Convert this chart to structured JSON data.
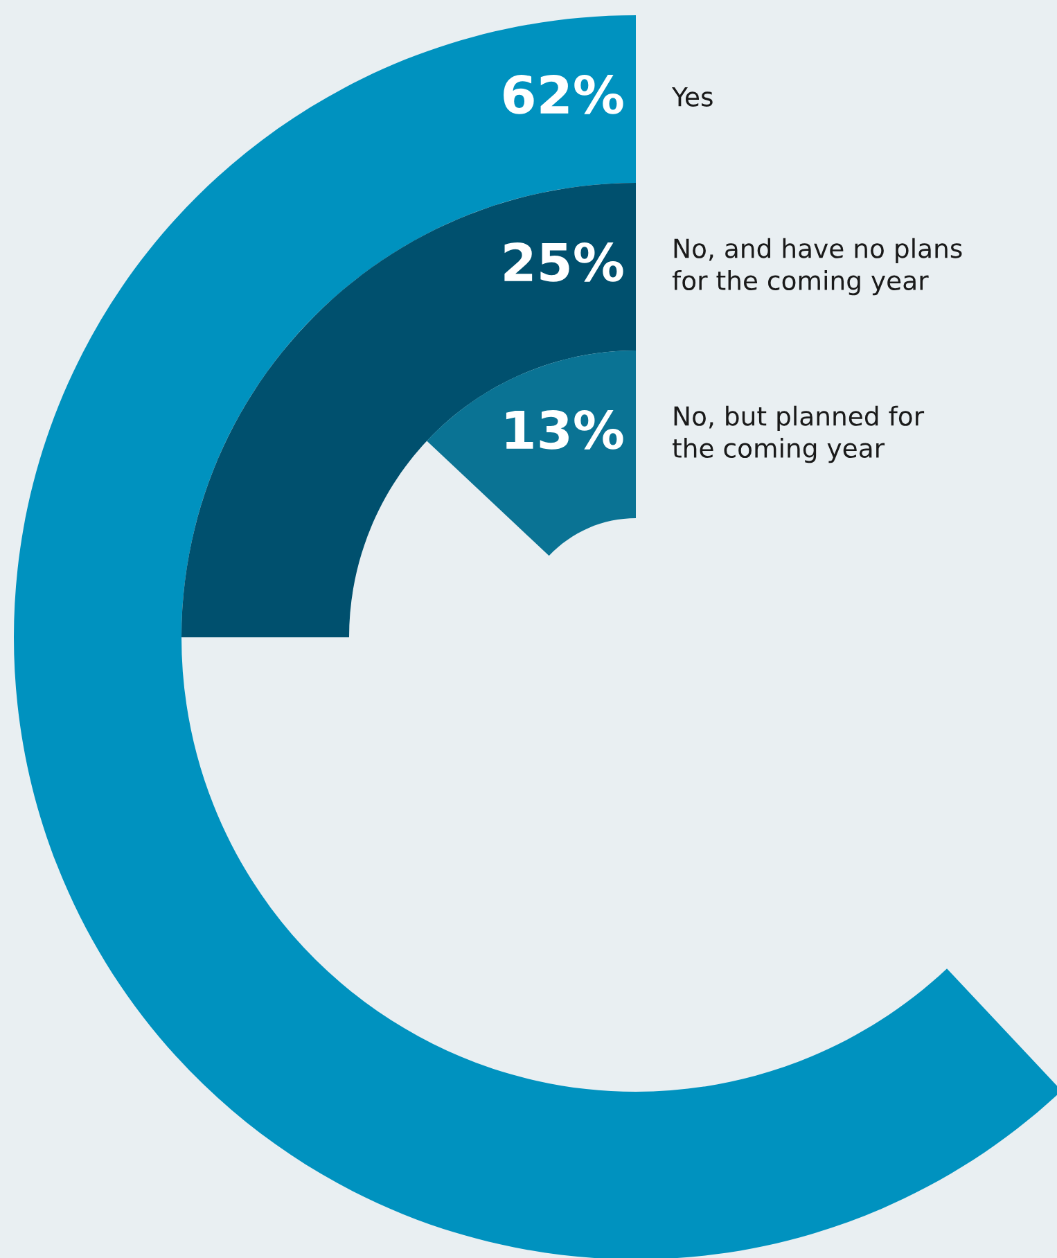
{
  "chart_data": {
    "type": "other",
    "categories": [
      "Yes",
      "No, and have no plans\nfor the coming year",
      "No, but planned for\nthe coming year"
    ],
    "values": [
      62,
      25,
      13
    ],
    "colors": [
      "#0092bf",
      "#00506e",
      "#0a7394"
    ],
    "value_labels": [
      "62%",
      "25%",
      "13%"
    ],
    "legend": false
  }
}
